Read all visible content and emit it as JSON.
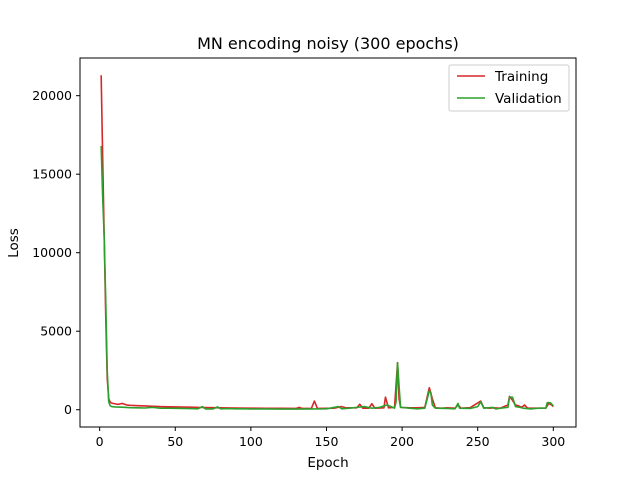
{
  "chart_data": {
    "type": "line",
    "title": "MN encoding noisy (300 epochs)",
    "xlabel": "Epoch",
    "ylabel": "Loss",
    "xlim": [
      -13,
      315
    ],
    "ylim": [
      -1100,
      22400
    ],
    "xticks": [
      0,
      50,
      100,
      150,
      200,
      250,
      300
    ],
    "yticks": [
      0,
      5000,
      10000,
      15000,
      20000
    ],
    "grid": false,
    "legend_position": "top-right",
    "series": [
      {
        "name": "Training",
        "color": "#d62728",
        "points": [
          [
            1,
            21300
          ],
          [
            2,
            16000
          ],
          [
            3,
            11000
          ],
          [
            4,
            6000
          ],
          [
            5,
            2000
          ],
          [
            6,
            700
          ],
          [
            7,
            480
          ],
          [
            8,
            420
          ],
          [
            10,
            380
          ],
          [
            12,
            340
          ],
          [
            15,
            400
          ],
          [
            18,
            300
          ],
          [
            20,
            280
          ],
          [
            25,
            260
          ],
          [
            30,
            240
          ],
          [
            35,
            220
          ],
          [
            40,
            200
          ],
          [
            45,
            190
          ],
          [
            50,
            180
          ],
          [
            55,
            170
          ],
          [
            60,
            160
          ],
          [
            65,
            150
          ],
          [
            70,
            140
          ],
          [
            75,
            130
          ],
          [
            80,
            120
          ],
          [
            90,
            110
          ],
          [
            100,
            100
          ],
          [
            110,
            95
          ],
          [
            120,
            90
          ],
          [
            130,
            85
          ],
          [
            132,
            150
          ],
          [
            134,
            80
          ],
          [
            140,
            80
          ],
          [
            142,
            550
          ],
          [
            144,
            80
          ],
          [
            150,
            90
          ],
          [
            155,
            100
          ],
          [
            160,
            200
          ],
          [
            163,
            120
          ],
          [
            170,
            120
          ],
          [
            172,
            350
          ],
          [
            174,
            100
          ],
          [
            178,
            100
          ],
          [
            180,
            380
          ],
          [
            182,
            100
          ],
          [
            188,
            120
          ],
          [
            189,
            800
          ],
          [
            191,
            120
          ],
          [
            195,
            150
          ],
          [
            197,
            3000
          ],
          [
            198,
            700
          ],
          [
            199,
            150
          ],
          [
            205,
            120
          ],
          [
            210,
            120
          ],
          [
            215,
            150
          ],
          [
            218,
            1400
          ],
          [
            220,
            700
          ],
          [
            222,
            120
          ],
          [
            226,
            100
          ],
          [
            230,
            120
          ],
          [
            235,
            100
          ],
          [
            237,
            300
          ],
          [
            239,
            100
          ],
          [
            245,
            130
          ],
          [
            252,
            550
          ],
          [
            254,
            130
          ],
          [
            258,
            100
          ],
          [
            260,
            120
          ],
          [
            265,
            100
          ],
          [
            270,
            300
          ],
          [
            271,
            850
          ],
          [
            273,
            600
          ],
          [
            275,
            300
          ],
          [
            277,
            250
          ],
          [
            279,
            150
          ],
          [
            281,
            300
          ],
          [
            283,
            100
          ],
          [
            290,
            100
          ],
          [
            295,
            100
          ],
          [
            297,
            400
          ],
          [
            299,
            300
          ],
          [
            300,
            200
          ]
        ]
      },
      {
        "name": "Validation",
        "color": "#2ca02c",
        "points": [
          [
            1,
            16800
          ],
          [
            2,
            13500
          ],
          [
            3,
            11000
          ],
          [
            4,
            7000
          ],
          [
            5,
            2500
          ],
          [
            6,
            500
          ],
          [
            7,
            250
          ],
          [
            8,
            200
          ],
          [
            10,
            180
          ],
          [
            15,
            160
          ],
          [
            20,
            130
          ],
          [
            25,
            120
          ],
          [
            30,
            110
          ],
          [
            35,
            150
          ],
          [
            40,
            100
          ],
          [
            45,
            95
          ],
          [
            50,
            90
          ],
          [
            55,
            80
          ],
          [
            60,
            70
          ],
          [
            65,
            60
          ],
          [
            68,
            200
          ],
          [
            70,
            50
          ],
          [
            75,
            50
          ],
          [
            78,
            180
          ],
          [
            80,
            60
          ],
          [
            85,
            70
          ],
          [
            90,
            60
          ],
          [
            95,
            60
          ],
          [
            100,
            50
          ],
          [
            110,
            50
          ],
          [
            120,
            40
          ],
          [
            130,
            40
          ],
          [
            140,
            50
          ],
          [
            150,
            60
          ],
          [
            158,
            200
          ],
          [
            160,
            60
          ],
          [
            165,
            100
          ],
          [
            170,
            150
          ],
          [
            175,
            200
          ],
          [
            180,
            100
          ],
          [
            185,
            150
          ],
          [
            190,
            300
          ],
          [
            195,
            100
          ],
          [
            196,
            500
          ],
          [
            197,
            3000
          ],
          [
            198,
            1500
          ],
          [
            199,
            150
          ],
          [
            205,
            100
          ],
          [
            210,
            60
          ],
          [
            215,
            100
          ],
          [
            218,
            1200
          ],
          [
            219,
            1100
          ],
          [
            220,
            300
          ],
          [
            222,
            100
          ],
          [
            230,
            80
          ],
          [
            235,
            60
          ],
          [
            237,
            400
          ],
          [
            238,
            100
          ],
          [
            245,
            80
          ],
          [
            250,
            200
          ],
          [
            252,
            500
          ],
          [
            254,
            100
          ],
          [
            260,
            150
          ],
          [
            262,
            50
          ],
          [
            265,
            100
          ],
          [
            270,
            150
          ],
          [
            271,
            800
          ],
          [
            273,
            800
          ],
          [
            275,
            200
          ],
          [
            278,
            150
          ],
          [
            280,
            100
          ],
          [
            285,
            50
          ],
          [
            290,
            100
          ],
          [
            295,
            100
          ],
          [
            296,
            450
          ],
          [
            298,
            450
          ],
          [
            300,
            250
          ]
        ]
      }
    ]
  }
}
